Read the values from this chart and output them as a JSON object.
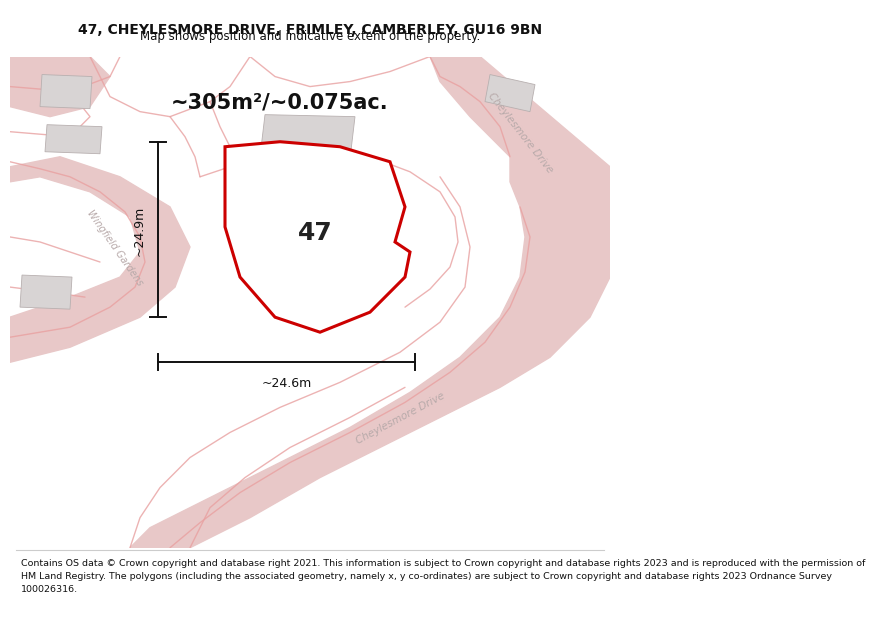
{
  "title_line1": "47, CHEYLESMORE DRIVE, FRIMLEY, CAMBERLEY, GU16 9BN",
  "title_line2": "Map shows position and indicative extent of the property.",
  "area_text": "~305m²/~0.075ac.",
  "label_47": "47",
  "dim_vertical": "~24.9m",
  "dim_horizontal": "~24.6m",
  "footer_lines": [
    "Contains OS data © Crown copyright and database right 2021. This information is subject to Crown copyright and database rights 2023 and is reproduced with the permission of",
    "HM Land Registry. The polygons (including the associated geometry, namely x, y co-ordinates) are subject to Crown copyright and database rights 2023 Ordnance Survey",
    "100026316."
  ],
  "map_bg": "#f2f0f0",
  "road_fill_color": "#e8c8c8",
  "road_line_color": "#e8a0a0",
  "plot_outline_color": "#cc0000",
  "building_fill": "#d8d4d4",
  "building_edge": "#b8b0b0",
  "street_label_color": "#b8aaaa",
  "dim_line_color": "#111111",
  "title_color": "#111111",
  "footer_color": "#111111",
  "title_fontsize": 10,
  "subtitle_fontsize": 8.5,
  "area_fontsize": 15,
  "label_fontsize": 18,
  "dim_fontsize": 9,
  "street_fontsize": 7.5,
  "footer_fontsize": 6.8
}
